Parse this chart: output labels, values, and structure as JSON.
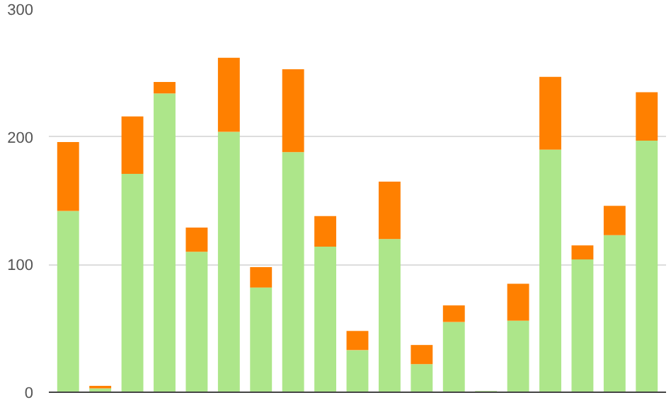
{
  "chart_data": {
    "type": "bar",
    "stacked": true,
    "categories": [
      null,
      null,
      null,
      null,
      null,
      null,
      null,
      null,
      null,
      null,
      null,
      null,
      null,
      null,
      null,
      null,
      null,
      null,
      null
    ],
    "series": [
      {
        "color": "#ade68a",
        "values": [
          142,
          3,
          171,
          234,
          110,
          204,
          82,
          188,
          114,
          33,
          120,
          22,
          55,
          1,
          56,
          190,
          104,
          123,
          197
        ]
      },
      {
        "color": "#ff8000",
        "values": [
          54,
          2,
          45,
          9,
          19,
          58,
          16,
          65,
          24,
          15,
          45,
          15,
          13,
          0,
          29,
          57,
          11,
          23,
          38
        ]
      }
    ],
    "ylim": [
      0,
      300
    ],
    "yticks": [
      0,
      100,
      200,
      300
    ],
    "grid": "y"
  }
}
